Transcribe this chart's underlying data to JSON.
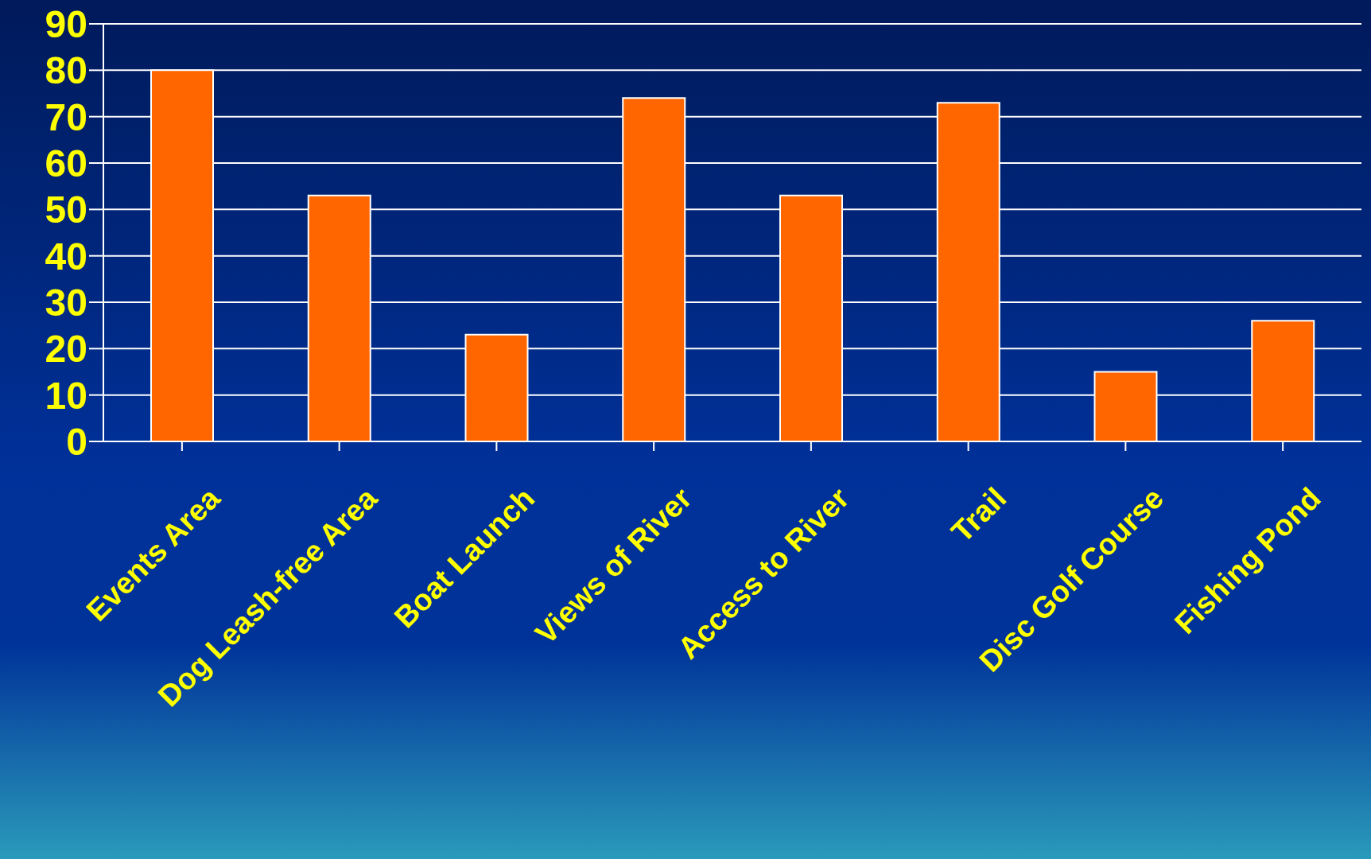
{
  "chart_data": {
    "type": "bar",
    "categories": [
      "Events Area",
      "Dog Leash-free Area",
      "Boat Launch",
      "Views of River",
      "Access to River",
      "Trail",
      "Disc Golf Course",
      "Fishing Pond"
    ],
    "values": [
      80,
      53,
      23,
      74,
      53,
      73,
      15,
      26
    ],
    "color": "#ff6600",
    "ylim": [
      0,
      90
    ],
    "yticks": [
      0,
      10,
      20,
      30,
      40,
      50,
      60,
      70,
      80,
      90
    ],
    "grid": "y"
  }
}
